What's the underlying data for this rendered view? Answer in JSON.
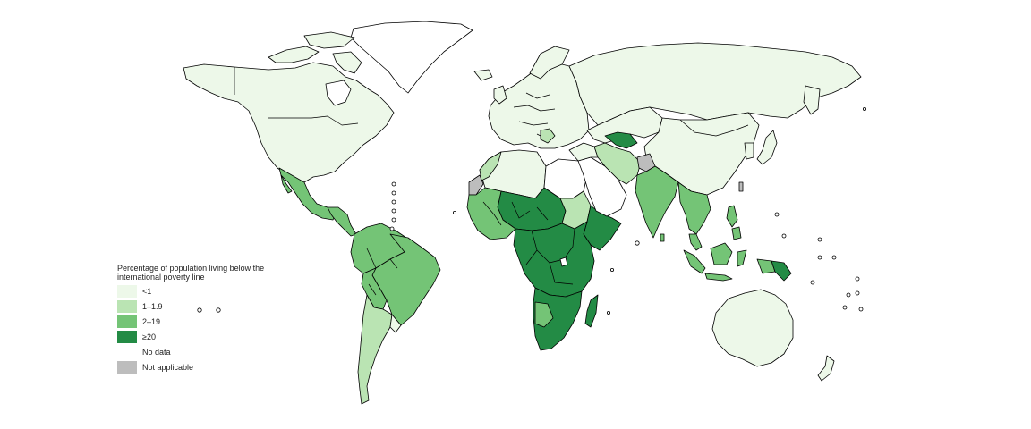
{
  "legend": {
    "title": "Percentage of population living below the international poverty line",
    "items": [
      {
        "label": "<1",
        "color": "#edf8e9"
      },
      {
        "label": "1–1.9",
        "color": "#bae4b3"
      },
      {
        "label": "2–19",
        "color": "#74c476"
      },
      {
        "label": "≥20",
        "color": "#238b45"
      },
      {
        "label": "No data",
        "color": "#ffffff"
      },
      {
        "label": "Not applicable",
        "color": "#bdbdbd"
      }
    ]
  },
  "regions": [
    {
      "name": "North America",
      "category": "<1"
    },
    {
      "name": "Greenland",
      "category": "No data"
    },
    {
      "name": "Mexico",
      "category": "2–19"
    },
    {
      "name": "Central America",
      "category": "2–19"
    },
    {
      "name": "South America North",
      "category": "2–19"
    },
    {
      "name": "Brazil",
      "category": "2–19"
    },
    {
      "name": "Bolivia-Paraguay",
      "category": "2–19"
    },
    {
      "name": "Argentina-Chile",
      "category": "1–1.9"
    },
    {
      "name": "Uruguay",
      "category": "<1"
    },
    {
      "name": "Europe",
      "category": "<1"
    },
    {
      "name": "Russia-Central Asia",
      "category": "<1"
    },
    {
      "name": "China",
      "category": "<1"
    },
    {
      "name": "North Africa",
      "category": "<1"
    },
    {
      "name": "Western Sahara",
      "category": "Not applicable"
    },
    {
      "name": "Libya-Egypt",
      "category": "No data"
    },
    {
      "name": "West Africa Coast",
      "category": "2–19"
    },
    {
      "name": "Sahel",
      "category": "≥20"
    },
    {
      "name": "Sudan",
      "category": "1–1.9"
    },
    {
      "name": "Horn of Africa",
      "category": "≥20"
    },
    {
      "name": "Central-East Africa",
      "category": "≥20"
    },
    {
      "name": "Southern Africa",
      "category": "≥20"
    },
    {
      "name": "Madagascar",
      "category": "≥20"
    },
    {
      "name": "Arabian Peninsula",
      "category": "No data"
    },
    {
      "name": "Iran-Pakistan",
      "category": "1–1.9"
    },
    {
      "name": "Afghanistan",
      "category": "Not applicable"
    },
    {
      "name": "Uzbekistan",
      "category": "≥20"
    },
    {
      "name": "India",
      "category": "2–19"
    },
    {
      "name": "Southeast Asia",
      "category": "2–19"
    },
    {
      "name": "Indonesia",
      "category": "2–19"
    },
    {
      "name": "Papua New Guinea",
      "category": "≥20"
    },
    {
      "name": "Philippines",
      "category": "2–19"
    },
    {
      "name": "Japan-Korea",
      "category": "<1"
    },
    {
      "name": "Australia-NZ",
      "category": "<1"
    }
  ]
}
